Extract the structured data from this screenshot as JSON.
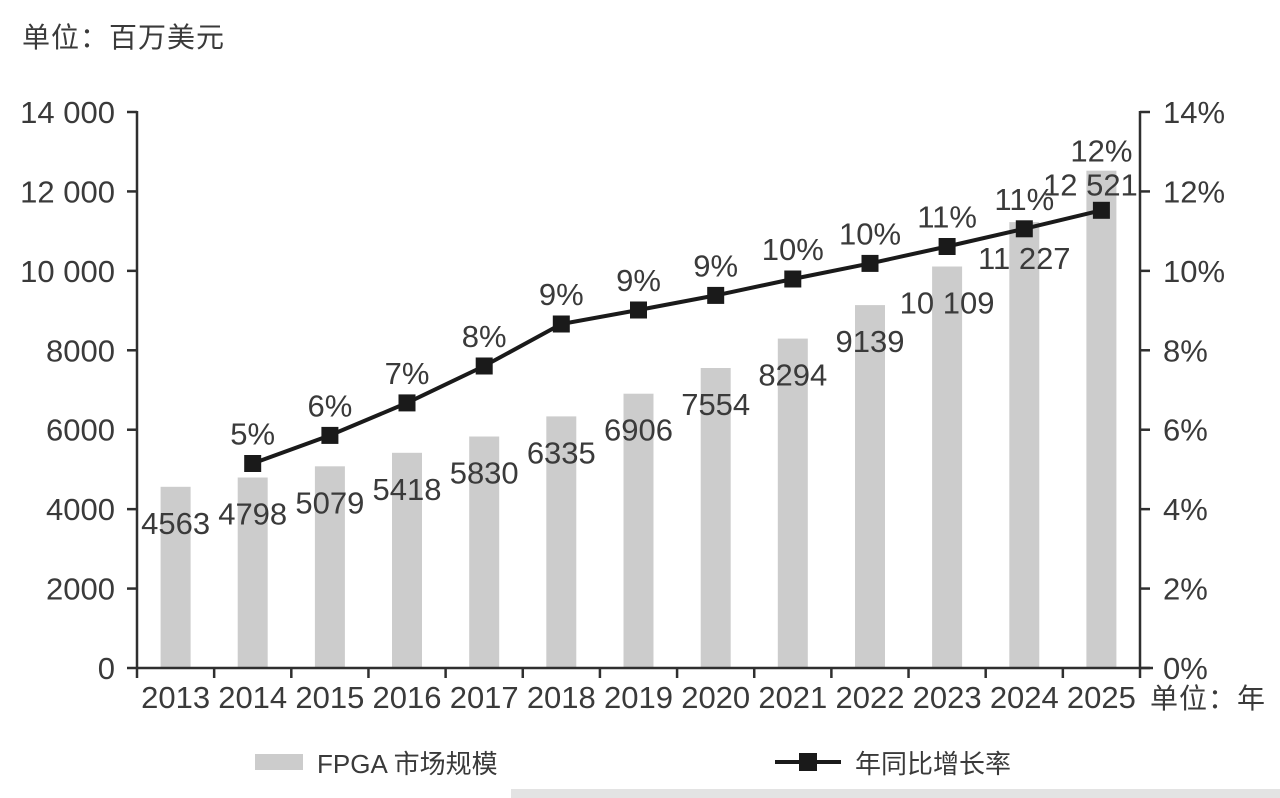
{
  "title": "单位：百万美元",
  "x_axis_unit_label": "单位：年",
  "colors": {
    "bar": "#cccccc",
    "line": "#1a1a1a",
    "text": "#3a3a3a",
    "axis": "#2f2f2f",
    "bottom_strip": "#e3e3e3"
  },
  "legend": [
    {
      "label": "FPGA 市场规模",
      "marker": "gray-bar-swatch"
    },
    {
      "label": "年同比增长率",
      "marker": "black-line-square-swatch"
    }
  ],
  "chart_data": {
    "type": "bar",
    "combo": "bar+line",
    "title": "单位：百万美元",
    "grid": false,
    "legend_position": "bottom",
    "categories": [
      "2013",
      "2014",
      "2015",
      "2016",
      "2017",
      "2018",
      "2019",
      "2020",
      "2021",
      "2022",
      "2023",
      "2024",
      "2025"
    ],
    "series": [
      {
        "name": "FPGA 市场规模",
        "type": "bar",
        "axis": "left",
        "values": [
          4563,
          4798,
          5079,
          5418,
          5830,
          6335,
          6906,
          7554,
          8294,
          9139,
          10109,
          11227,
          12521
        ],
        "value_labels": [
          "4563",
          "4798",
          "5079",
          "5418",
          "5830",
          "6335",
          "6906",
          "7554",
          "8294",
          "9139",
          "10 109",
          "11 227",
          "12 521"
        ]
      },
      {
        "name": "年同比增长率",
        "type": "line",
        "axis": "right",
        "first_category_index": 1,
        "values_pct_displayed": [
          5,
          6,
          7,
          8,
          9,
          9,
          9,
          10,
          10,
          11,
          11,
          12
        ],
        "point_labels": [
          "5%",
          "6%",
          "7%",
          "8%",
          "9%",
          "9%",
          "9%",
          "10%",
          "10%",
          "11%",
          "11%",
          "12%"
        ]
      }
    ],
    "left_axis": {
      "unit": "百万美元",
      "min": 0,
      "max": 14000,
      "tick_labels": [
        "0",
        "2000",
        "4000",
        "6000",
        "8000",
        "10 000",
        "12 000",
        "14 000"
      ]
    },
    "right_axis": {
      "unit": "%",
      "min": 0,
      "max": 14,
      "tick_labels": [
        "0%",
        "2%",
        "4%",
        "6%",
        "8%",
        "10%",
        "12%",
        "14%"
      ]
    },
    "x_axis": {
      "unit": "年"
    }
  }
}
